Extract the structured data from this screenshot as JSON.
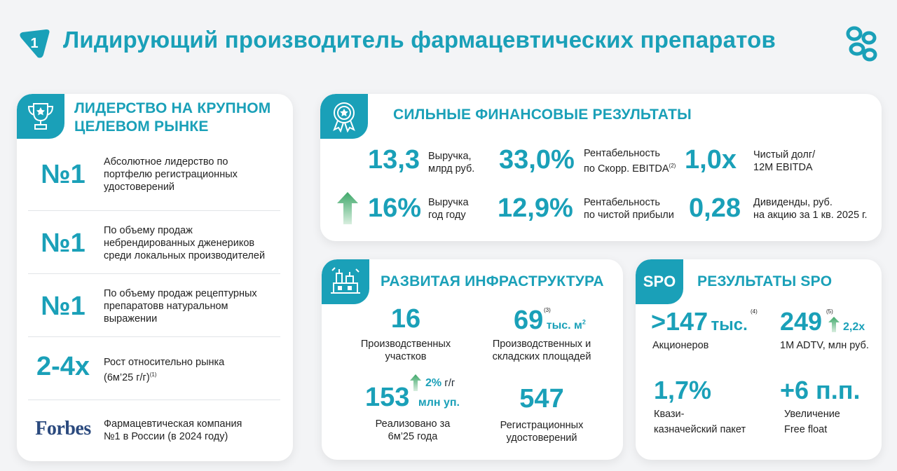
{
  "header": {
    "badge_number": "1",
    "title": "Лидирующий производитель фармацевтических препаратов"
  },
  "leadership": {
    "title_line1": "ЛИДЕРСТВО НА КРУПНОМ",
    "title_line2": "ЦЕЛЕВОМ РЫНКЕ",
    "icon": "trophy-icon",
    "rows": [
      {
        "big": "№1",
        "desc": [
          "Абсолютное лидерство по",
          "портфелю регистрационных",
          "удостоверений"
        ]
      },
      {
        "big": "№1",
        "desc": [
          "По объему продаж",
          "небрендированных дженериков",
          "среди локальных производителей"
        ]
      },
      {
        "big": "№1",
        "desc": [
          "По объему продаж рецептурных",
          "препаратовв натуральном",
          "выражении"
        ]
      },
      {
        "big": "2-4x",
        "desc": [
          "Рост относительно рынка",
          "(6м’25 г/г)"
        ],
        "footnote": "(1)"
      },
      {
        "logo": "Forbes",
        "desc": [
          "Фармацевтическая компания",
          "№1 в России (в 2024 году)"
        ]
      }
    ]
  },
  "finance": {
    "title": "СИЛЬНЫЕ ФИНАНСОВЫЕ РЕЗУЛЬТАТЫ",
    "icon": "award-medal-icon",
    "items": [
      {
        "value": "13,3",
        "label": [
          "Выручка,",
          "млрд руб."
        ]
      },
      {
        "value": "33,0%",
        "label": [
          "Рентабельность",
          "по Скорр. EBITDA"
        ],
        "footnote": "(2)"
      },
      {
        "value": "1,0x",
        "label": [
          "Чистый долг/",
          "12M EBITDA"
        ]
      },
      {
        "value": "16%",
        "label": [
          "Выручка",
          "год году"
        ],
        "icon": "arrow-up-icon"
      },
      {
        "value": "12,9%",
        "label": [
          "Рентабельность",
          "по чистой прибыли"
        ]
      },
      {
        "value": "0,28",
        "label": [
          "Дивиденды, руб.",
          "на акцию за 1 кв. 2025 г."
        ]
      }
    ]
  },
  "infra": {
    "title": "РАЗВИТАЯ ИНФРАСТРУКТУРА",
    "icon": "factory-icon",
    "sites_value": "16",
    "sites_label": [
      "Производственных",
      "участков"
    ],
    "area_value": "69",
    "area_footnote": "(3)",
    "area_unit": "тыс. м",
    "area_unit_sup": "2",
    "area_label": [
      "Производственных и",
      "складских площадей"
    ],
    "sold_value": "153",
    "sold_unit": "млн уп.",
    "sold_growth": "2%",
    "sold_growth_suffix": "г/г",
    "sold_label": [
      "Реализовано за",
      "6м’25 года"
    ],
    "reg_value": "547",
    "reg_label": [
      "Регистрационных",
      "удостоверений"
    ]
  },
  "spo": {
    "badge": "SPO",
    "title": "РЕЗУЛЬТАТЫ SPO",
    "holders_value": ">147",
    "holders_unit": "тыс.",
    "holders_footnote": "(4)",
    "holders_label": "Акционеров",
    "adtv_value": "249",
    "adtv_footnote": "(5)",
    "adtv_growth": "2,2x",
    "adtv_label": "1M ADTV, млн руб.",
    "treasury_value": "1,7%",
    "treasury_label": [
      "Квази-",
      "казначейский пакет"
    ],
    "freefloat_value": "+6 п.п.",
    "freefloat_label": [
      "Увеличение",
      "Free float"
    ]
  },
  "colors": {
    "accent": "#1aa0b8",
    "arrow_green": "#5cb87a",
    "forbes_blue": "#2b4a7e"
  }
}
